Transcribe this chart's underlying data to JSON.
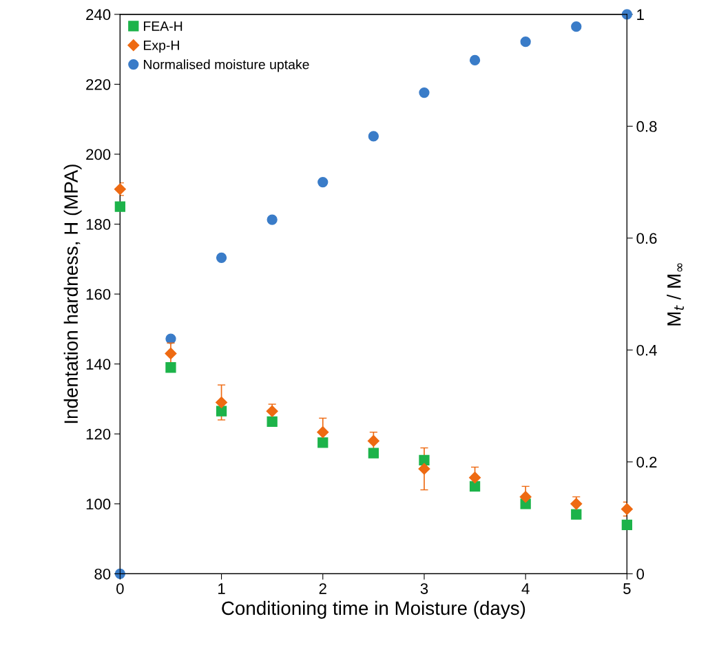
{
  "chart_data": {
    "type": "scatter",
    "xlabel": "Conditioning time in Moisture (days)",
    "ylabel": "Indentation hardness, H (MPA)",
    "y2label": "M$_{t}$ / M$_{∞}$",
    "x": [
      0,
      0.5,
      1,
      1.5,
      2,
      2.5,
      3,
      3.5,
      4,
      4.5,
      5
    ],
    "xlim": [
      0,
      5
    ],
    "xticks": [
      0,
      1,
      2,
      3,
      4,
      5
    ],
    "ylim": [
      80,
      240
    ],
    "yticks": [
      80,
      100,
      120,
      140,
      160,
      180,
      200,
      220,
      240
    ],
    "y2lim": [
      0,
      1
    ],
    "y2ticks": [
      0,
      0.2,
      0.4,
      0.6,
      0.8,
      1
    ],
    "grid": false,
    "legend": "top left",
    "series": [
      {
        "name": "FEA-H",
        "color": "#1db34a",
        "marker": "square",
        "values": [
          185,
          139,
          126.5,
          123.5,
          117.5,
          114.5,
          112.5,
          105,
          100,
          97,
          94
        ]
      },
      {
        "name": "Exp-H",
        "color": "#ee6a12",
        "marker": "diamond",
        "values": [
          190,
          143,
          129,
          126.5,
          120.5,
          118,
          110,
          107.5,
          102,
          100,
          98.5
        ],
        "errors": [
          1.8,
          3,
          5,
          2,
          4,
          2.5,
          6,
          3,
          3,
          2,
          2
        ]
      },
      {
        "name": "Normalised moisture uptake",
        "color": "#3a7cc8",
        "marker": "circle",
        "axis": "y2",
        "values": [
          0,
          0.42,
          0.565,
          0.633,
          0.7,
          0.782,
          0.86,
          0.918,
          0.951,
          0.978,
          1.0
        ]
      }
    ]
  }
}
